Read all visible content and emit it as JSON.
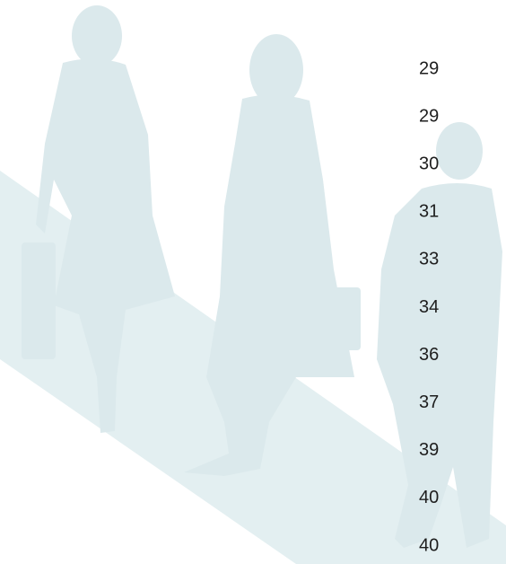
{
  "numbers": [
    29,
    29,
    30,
    31,
    33,
    34,
    36,
    37,
    39,
    40,
    40
  ]
}
